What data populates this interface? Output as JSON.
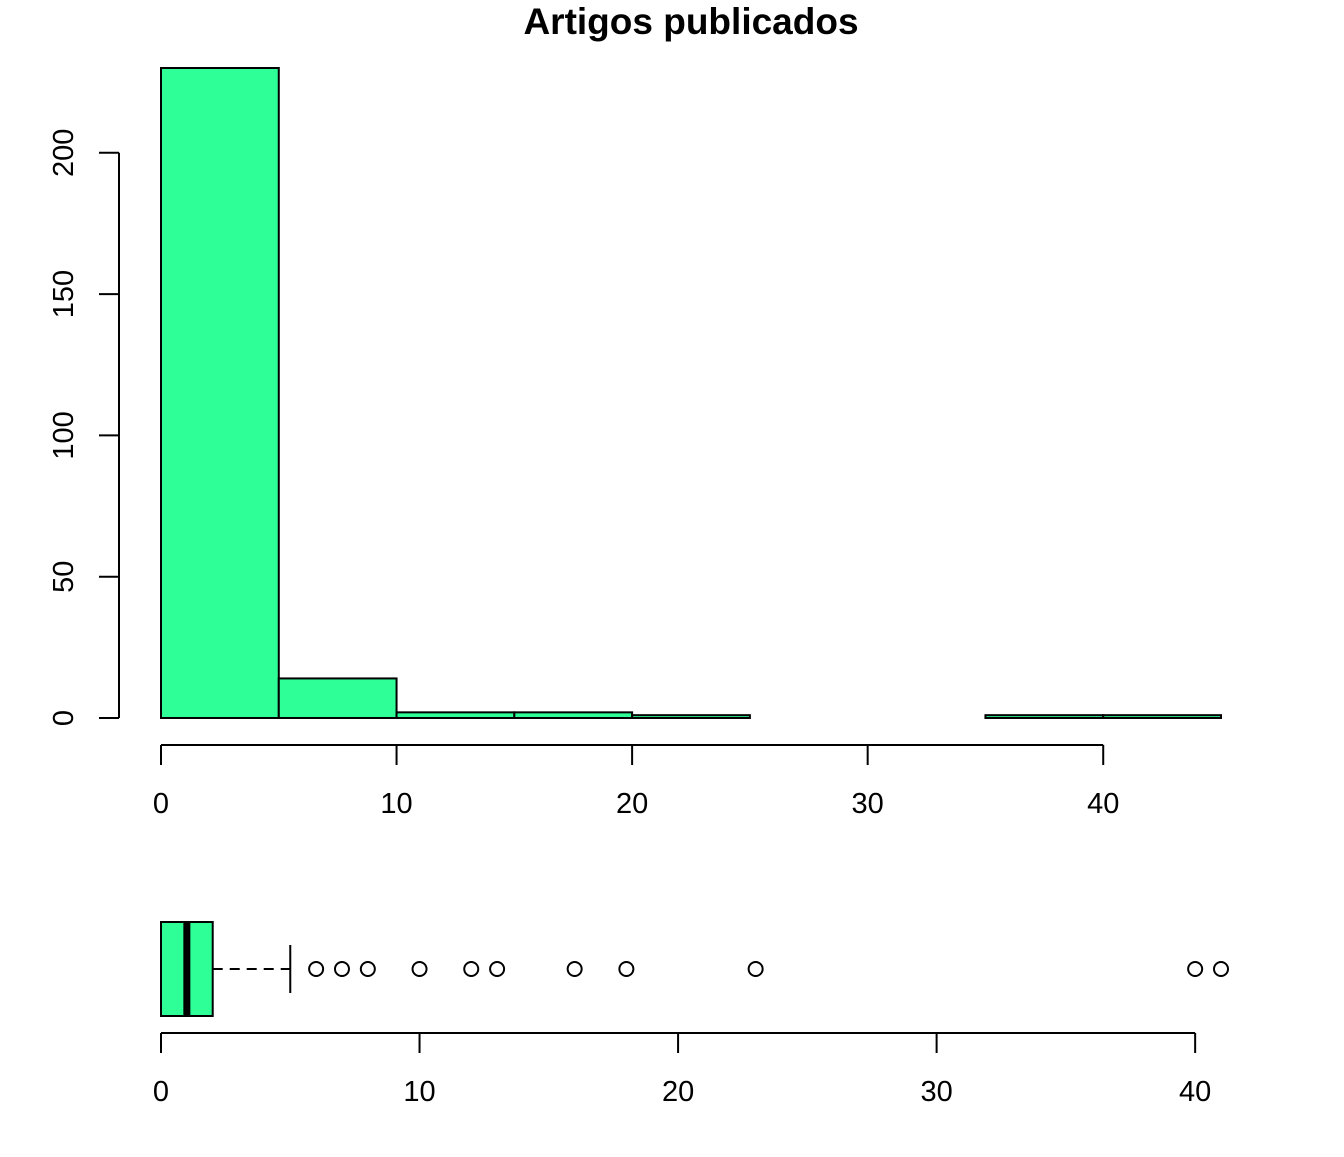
{
  "chart_data": [
    {
      "type": "bar",
      "subtype": "histogram",
      "title": "Artigos publicados",
      "xlabel": "",
      "ylabel": "",
      "bins": [
        [
          0,
          5
        ],
        [
          5,
          10
        ],
        [
          10,
          15
        ],
        [
          15,
          20
        ],
        [
          20,
          25
        ],
        [
          25,
          30
        ],
        [
          30,
          35
        ],
        [
          35,
          40
        ],
        [
          40,
          45
        ]
      ],
      "values": [
        230,
        14,
        2,
        2,
        1,
        0,
        0,
        1,
        1
      ],
      "xlim": [
        0,
        45
      ],
      "ylim": [
        0,
        230
      ],
      "x_ticks": [
        0,
        10,
        20,
        30,
        40
      ],
      "y_ticks": [
        0,
        50,
        100,
        150,
        200
      ],
      "fill_color": "#2eff96",
      "border_color": "#000000",
      "grid": false,
      "legend": "none"
    },
    {
      "type": "boxplot",
      "orientation": "horizontal",
      "min_whisker": 0,
      "q1": 0,
      "median": 1,
      "q3": 2,
      "max_whisker": 5,
      "outliers": [
        6,
        7,
        8,
        10,
        12,
        13,
        16,
        18,
        23,
        40,
        41
      ],
      "xlim": [
        0,
        41
      ],
      "x_ticks": [
        0,
        10,
        20,
        30,
        40
      ],
      "fill_color": "#2eff96",
      "border_color": "#000000",
      "grid": false,
      "legend": "none"
    }
  ]
}
